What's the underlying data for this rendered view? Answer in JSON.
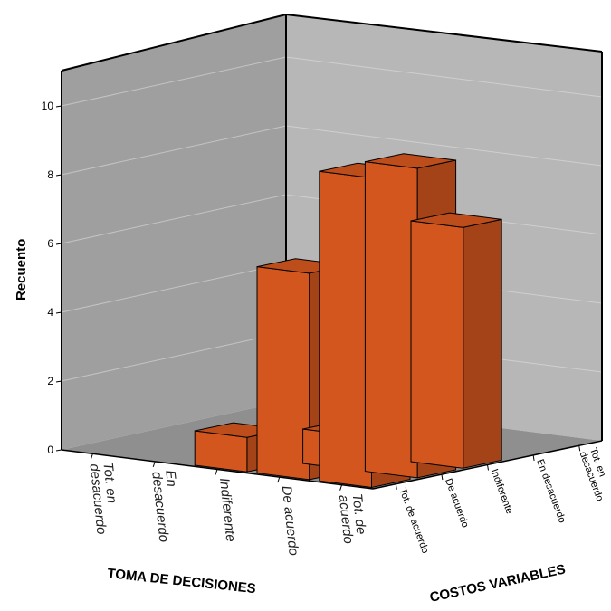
{
  "chart_data": {
    "type": "bar3d",
    "ylabel": "Recuento",
    "xlabel": "TOMA DE DECISIONES",
    "zlabel": "COSTOS VARIABLES",
    "yticks": [
      "0",
      "2",
      "4",
      "6",
      "8",
      "10"
    ],
    "ylim": [
      0,
      11
    ],
    "x_categories": [
      [
        "Tot. en",
        "desacuerdo"
      ],
      [
        "En",
        "desacuerdo"
      ],
      [
        "Indiferente"
      ],
      [
        "De acuerdo"
      ],
      [
        "Tot. de",
        "acuerdo"
      ]
    ],
    "z_categories": [
      [
        "Tot. de acuerdo"
      ],
      [
        "De acuerdo"
      ],
      [
        "Indiferente"
      ],
      [
        "En desacuerdo"
      ],
      [
        "Tot. en",
        "desacuerdo"
      ]
    ],
    "bar_color": "#d2561e",
    "bars": [
      {
        "x": "Tot. de acuerdo",
        "z": "De acuerdo",
        "value": 9
      },
      {
        "x": "Tot. de acuerdo",
        "z": "Indiferente",
        "value": 7
      },
      {
        "x": "De acuerdo",
        "z": "De acuerdo",
        "value": 1
      },
      {
        "x": "Indiferente",
        "z": "Tot. de acuerdo",
        "value": 1
      },
      {
        "x": "De acuerdo",
        "z": "Tot. de acuerdo",
        "value": 6
      },
      {
        "x": "Tot. de acuerdo",
        "z": "Tot. de acuerdo",
        "value": 9
      }
    ]
  }
}
